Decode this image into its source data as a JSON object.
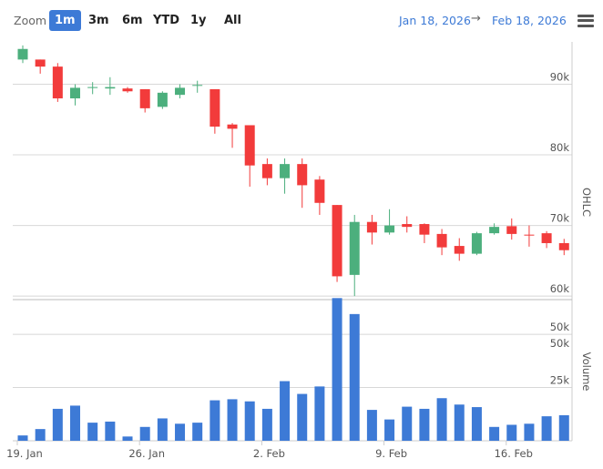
{
  "toolbar": {
    "zoom_label": "Zoom",
    "zoom_buttons": [
      "1m",
      "3m",
      "6m",
      "YTD",
      "1y",
      "All"
    ],
    "active_zoom": "1m",
    "range_from": "Jan 18, 2026",
    "range_arrow": "→",
    "range_to": "Feb 18, 2026",
    "menu_icon": "hamburger-menu-icon"
  },
  "colors": {
    "up": "#4caf7d",
    "down": "#f23b3b",
    "volume": "#3d7ad6",
    "accent": "#3d7ad6"
  },
  "chart_data": [
    {
      "type": "candlestick",
      "ylabel": "OHLC",
      "ylim": [
        59500,
        96000
      ],
      "yticks": [
        60000,
        70000,
        80000,
        90000
      ],
      "ytick_labels": [
        "60k",
        "70k",
        "80k",
        "90k"
      ],
      "grid": true,
      "ohlc": [
        {
          "date": "2026-01-19",
          "open": 93500,
          "high": 95500,
          "low": 93000,
          "close": 95000
        },
        {
          "date": "2026-01-20",
          "open": 93500,
          "high": 93500,
          "low": 91500,
          "close": 92500
        },
        {
          "date": "2026-01-21",
          "open": 92500,
          "high": 93000,
          "low": 87500,
          "close": 88000
        },
        {
          "date": "2026-01-22",
          "open": 88000,
          "high": 90000,
          "low": 87000,
          "close": 89500
        },
        {
          "date": "2026-01-23",
          "open": 89500,
          "high": 90300,
          "low": 88600,
          "close": 89600
        },
        {
          "date": "2026-01-24",
          "open": 89400,
          "high": 91000,
          "low": 88500,
          "close": 89600
        },
        {
          "date": "2026-01-25",
          "open": 89400,
          "high": 89600,
          "low": 88800,
          "close": 89000
        },
        {
          "date": "2026-01-26",
          "open": 89300,
          "high": 89300,
          "low": 86000,
          "close": 86600
        },
        {
          "date": "2026-01-27",
          "open": 86800,
          "high": 89000,
          "low": 86500,
          "close": 88800
        },
        {
          "date": "2026-01-28",
          "open": 88500,
          "high": 90000,
          "low": 88000,
          "close": 89500
        },
        {
          "date": "2026-01-29",
          "open": 89800,
          "high": 90500,
          "low": 88800,
          "close": 89900
        },
        {
          "date": "2026-01-30",
          "open": 89300,
          "high": 89300,
          "low": 83000,
          "close": 84000
        },
        {
          "date": "2026-01-31",
          "open": 84300,
          "high": 84500,
          "low": 81000,
          "close": 83700
        },
        {
          "date": "2026-02-01",
          "open": 84200,
          "high": 84200,
          "low": 75500,
          "close": 78500
        },
        {
          "date": "2026-02-02",
          "open": 78700,
          "high": 79500,
          "low": 75700,
          "close": 76700
        },
        {
          "date": "2026-02-03",
          "open": 76700,
          "high": 79500,
          "low": 74500,
          "close": 78700
        },
        {
          "date": "2026-02-04",
          "open": 78700,
          "high": 79500,
          "low": 72500,
          "close": 75700
        },
        {
          "date": "2026-02-05",
          "open": 76500,
          "high": 77000,
          "low": 71500,
          "close": 73200
        },
        {
          "date": "2026-02-06",
          "open": 72900,
          "high": 72900,
          "low": 62000,
          "close": 62800
        },
        {
          "date": "2026-02-07",
          "open": 63000,
          "high": 71500,
          "low": 60000,
          "close": 70500
        },
        {
          "date": "2026-02-08",
          "open": 70500,
          "high": 71500,
          "low": 67300,
          "close": 69000
        },
        {
          "date": "2026-02-09",
          "open": 69000,
          "high": 72300,
          "low": 68700,
          "close": 70000
        },
        {
          "date": "2026-02-10",
          "open": 70200,
          "high": 71300,
          "low": 69000,
          "close": 69800
        },
        {
          "date": "2026-02-11",
          "open": 70200,
          "high": 70300,
          "low": 67500,
          "close": 68700
        },
        {
          "date": "2026-02-12",
          "open": 68800,
          "high": 69500,
          "low": 65800,
          "close": 66900
        },
        {
          "date": "2026-02-13",
          "open": 67100,
          "high": 68200,
          "low": 65000,
          "close": 66000
        },
        {
          "date": "2026-02-14",
          "open": 66000,
          "high": 69100,
          "low": 65800,
          "close": 68900
        },
        {
          "date": "2026-02-15",
          "open": 68900,
          "high": 70300,
          "low": 68700,
          "close": 69800
        },
        {
          "date": "2026-02-16",
          "open": 69900,
          "high": 71000,
          "low": 68000,
          "close": 68800
        },
        {
          "date": "2026-02-17",
          "open": 68700,
          "high": 70000,
          "low": 67000,
          "close": 68600
        },
        {
          "date": "2026-02-18",
          "open": 68900,
          "high": 69200,
          "low": 66800,
          "close": 67500
        },
        {
          "date": "2026-02-19",
          "open": 67500,
          "high": 68100,
          "low": 65800,
          "close": 66500
        }
      ]
    },
    {
      "type": "bar",
      "ylabel": "Volume",
      "ylim": [
        0,
        65000
      ],
      "yticks": [
        25000,
        50000
      ],
      "ytick_labels": [
        "25k",
        "50k"
      ],
      "top_label": "50k",
      "grid": true,
      "values": [
        2500,
        5500,
        15000,
        16500,
        8500,
        9000,
        2000,
        6500,
        10500,
        8000,
        8500,
        19000,
        19500,
        18500,
        15000,
        28000,
        22000,
        25500,
        67000,
        59500,
        14500,
        10000,
        16000,
        15000,
        20000,
        17000,
        15800,
        6500,
        7500,
        8000,
        11500,
        12000
      ]
    }
  ],
  "x_axis": {
    "tick_dates": [
      "2026-01-19",
      "2026-01-26",
      "2026-02-02",
      "2026-02-09",
      "2026-02-16"
    ],
    "tick_labels": [
      "19. Jan",
      "26. Jan",
      "2. Feb",
      "9. Feb",
      "16. Feb"
    ]
  }
}
